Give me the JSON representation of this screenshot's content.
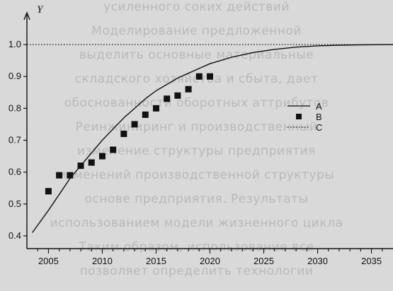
{
  "bleed_text": [
    "усиленного соких действий",
    "Моделирование предложенной",
    "выделить основные материальные",
    "складского хозяйства и сбыта, дает",
    "обоснованности оборотных аттрибутов",
    "Реинжиниринг и производственный",
    "изменение структуры предприятия",
    "изменений производственной структуры",
    "основе предприятия. Результаты",
    "использованием модели жизненного цикла",
    "Таким образом, использование все",
    "позволяет определить технологии"
  ],
  "chart_data": {
    "type": "scatter",
    "title": "",
    "xlabel": "",
    "ylabel": "Y",
    "xlim": [
      2003,
      2037
    ],
    "ylim": [
      0.36,
      1.06
    ],
    "grid": false,
    "x_ticks": [
      "2005",
      "2010",
      "2015",
      "2020",
      "2025",
      "2030",
      "2035"
    ],
    "y_ticks": [
      "0.4",
      "0.5",
      "0.6",
      "0.7",
      "0.8",
      "0.9",
      "1.0"
    ],
    "legend_position": "right",
    "colors": {
      "background": "#d9d9d9",
      "ink": "#111111"
    },
    "series": [
      {
        "name": "A",
        "kind": "line",
        "style": "solid",
        "x": [
          2003.5,
          2005,
          2006,
          2007,
          2008,
          2009,
          2010,
          2011,
          2012,
          2013,
          2014,
          2015,
          2016,
          2017,
          2018,
          2019,
          2020,
          2022,
          2024,
          2026,
          2028,
          2030,
          2032,
          2034,
          2037
        ],
        "y": [
          0.41,
          0.48,
          0.53,
          0.58,
          0.62,
          0.66,
          0.7,
          0.735,
          0.77,
          0.8,
          0.83,
          0.855,
          0.875,
          0.895,
          0.91,
          0.925,
          0.94,
          0.96,
          0.975,
          0.985,
          0.992,
          0.996,
          0.998,
          0.999,
          1.0
        ]
      },
      {
        "name": "B",
        "kind": "markers",
        "marker": "square",
        "x": [
          2005,
          2006,
          2007,
          2008,
          2009,
          2010,
          2011,
          2012,
          2013,
          2014,
          2015,
          2016,
          2017,
          2018,
          2019,
          2020
        ],
        "y": [
          0.54,
          0.59,
          0.59,
          0.62,
          0.63,
          0.65,
          0.67,
          0.72,
          0.75,
          0.78,
          0.8,
          0.83,
          0.84,
          0.86,
          0.9,
          0.9
        ]
      },
      {
        "name": "C",
        "kind": "line",
        "style": "dotted",
        "x": [
          2003,
          2037
        ],
        "y": [
          1.0,
          1.0
        ]
      }
    ]
  }
}
